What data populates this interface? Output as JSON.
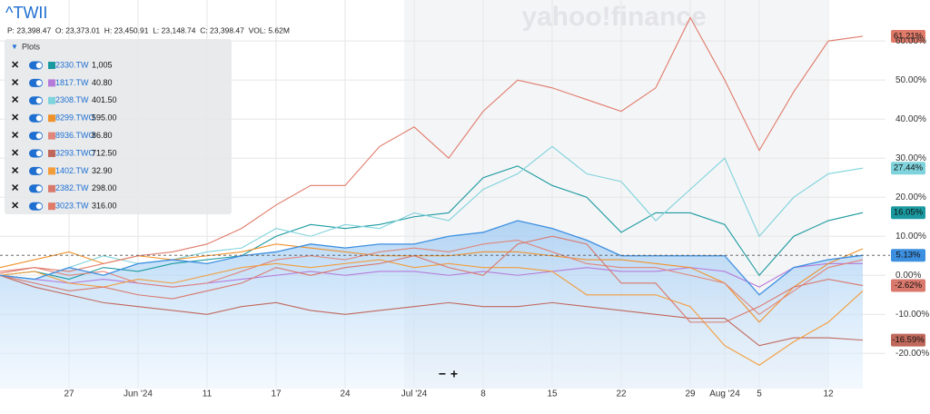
{
  "header": {
    "symbol": "^TWII",
    "quote": "P: 23,398.47  O: 23,373.01  H: 23,450.91  L: 23,148.74  C: 23,398.47  VOL: 5.62M",
    "watermark": "yahoo!finance"
  },
  "legend": {
    "title": "Plots",
    "prices": [
      "1,005",
      "40.80",
      "401.50",
      "595.00",
      "86.80",
      "712.50",
      "32.90",
      "298.00",
      "316.00"
    ]
  },
  "zoom": {
    "out": "−",
    "in": "+"
  },
  "chart_data": {
    "type": "line",
    "categories": [
      null,
      null,
      "27",
      null,
      "Jun '24",
      null,
      "11",
      null,
      "17",
      null,
      "24",
      null,
      "Jul '24",
      null,
      "8",
      null,
      "15",
      null,
      "22",
      null,
      "29",
      "Aug '24",
      "5",
      null,
      "12",
      null
    ],
    "ylim": [
      -29,
      70.5
    ],
    "yticks": [
      {
        "value": -20,
        "label": "-20.00%"
      },
      {
        "value": -10,
        "label": "-10.00%"
      },
      {
        "value": 0,
        "label": "0.00%"
      },
      {
        "value": 10,
        "label": "10.00%"
      },
      {
        "value": 20,
        "label": "20.00%"
      },
      {
        "value": 30,
        "label": "30.00%"
      },
      {
        "value": 40,
        "label": "40.00%"
      },
      {
        "value": 50,
        "label": "50.00%"
      },
      {
        "value": 60,
        "label": "60.00%"
      }
    ],
    "grid": true,
    "main": {
      "name": "^TWII",
      "color": "#3d8fe0",
      "values": [
        0,
        -1,
        2,
        0,
        3,
        4,
        3,
        5,
        6,
        8,
        7,
        8,
        8,
        10,
        11,
        14,
        12,
        9,
        5,
        5,
        5,
        5,
        -5,
        2,
        4,
        5.13
      ],
      "last_label": "5.13%"
    },
    "series": [
      {
        "name": "2330.TW",
        "color": "#1a9aa0",
        "values": [
          0,
          1,
          -1,
          2,
          1,
          3,
          4,
          5,
          10,
          13,
          12,
          13,
          15,
          16,
          25,
          28,
          23,
          20,
          11,
          16,
          16,
          13,
          0,
          10,
          14,
          16.05
        ],
        "last_label": "16.05%"
      },
      {
        "name": "1817.TW",
        "color": "#b67ad9",
        "values": [
          0,
          -1,
          -2,
          -1,
          -2,
          -3,
          -2,
          -1,
          0,
          1,
          0,
          1,
          1,
          0,
          1,
          0,
          1,
          2,
          1,
          1,
          2,
          1,
          -3,
          2,
          3,
          3
        ]
      },
      {
        "name": "2308.TW",
        "color": "#7fd3dc",
        "values": [
          0,
          -1,
          2,
          5,
          3,
          4,
          6,
          7,
          12,
          10,
          13,
          12,
          16,
          14,
          22,
          26,
          33,
          26,
          24,
          14,
          22,
          30,
          10,
          20,
          26,
          27.44
        ],
        "last_label": "27.44%"
      },
      {
        "name": "8299.TWO",
        "color": "#f0922c",
        "values": [
          2,
          4,
          6,
          3,
          5,
          4,
          5,
          6,
          8,
          7,
          6,
          5,
          5,
          5,
          6,
          6,
          5,
          4,
          4,
          3,
          2,
          -2,
          -12,
          -3,
          3,
          6.8
        ]
      },
      {
        "name": "8936.TWO",
        "color": "#e0867a",
        "values": [
          1,
          2,
          0,
          1,
          -2,
          -3,
          -2,
          1,
          4,
          5,
          4,
          6,
          7,
          6,
          8,
          9,
          6,
          3,
          2,
          2,
          0,
          -2,
          -10,
          -4,
          2,
          4
        ]
      },
      {
        "name": "3293.TWO",
        "color": "#c0685c",
        "values": [
          0,
          -3,
          -5,
          -7,
          -8,
          -9,
          -10,
          -8,
          -7,
          -9,
          -10,
          -9,
          -8,
          -7,
          -8,
          -8,
          -7,
          -8,
          -9,
          -10,
          -11,
          -11,
          -18,
          -16,
          -16,
          -16.59
        ],
        "last_label": "-16.59%"
      },
      {
        "name": "1402.TW",
        "color": "#f39c3a",
        "values": [
          0,
          1,
          -2,
          -3,
          -1,
          -2,
          0,
          2,
          3,
          2,
          3,
          4,
          2,
          3,
          2,
          2,
          1,
          -5,
          -5,
          -5,
          -8,
          -18,
          -23,
          -17,
          -12,
          -4
        ]
      },
      {
        "name": "2382.TW",
        "color": "#d9786c",
        "values": [
          0,
          -2,
          -4,
          -3,
          -5,
          -6,
          -4,
          -2,
          2,
          0,
          2,
          3,
          5,
          2,
          0,
          8,
          10,
          8,
          -2,
          -2,
          -12,
          -12,
          -8,
          -3,
          -1,
          -2.62
        ],
        "last_label": "-2.62%"
      },
      {
        "name": "3023.TW",
        "color": "#e07b6a",
        "values": [
          0.5,
          2,
          1,
          3,
          5,
          6,
          8,
          12,
          18,
          23,
          23,
          33,
          38,
          30,
          42,
          50,
          48,
          45,
          42,
          48,
          66,
          50,
          32,
          47,
          60,
          61.21
        ],
        "last_label": "61.21%"
      }
    ]
  }
}
